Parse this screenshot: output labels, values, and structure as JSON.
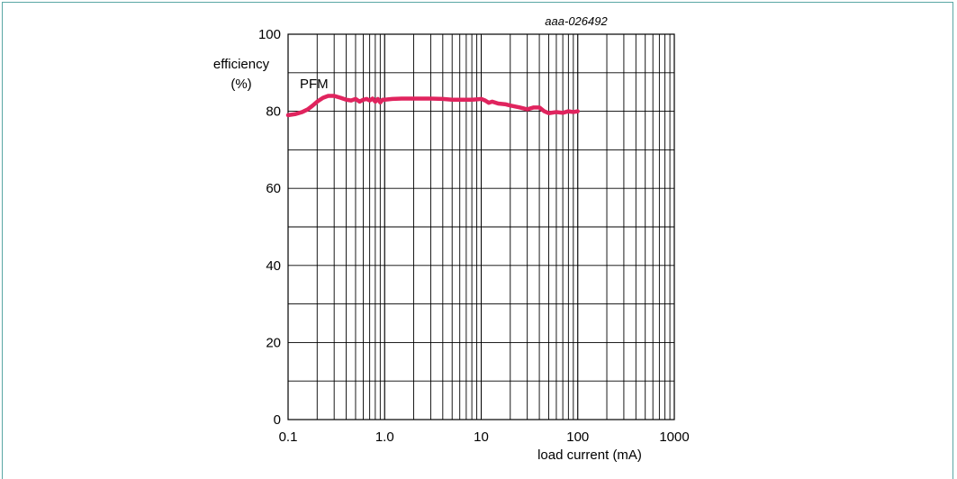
{
  "chart_data": {
    "type": "line",
    "figure_id": "aaa-026492",
    "ylabel_line1": "efficiency",
    "ylabel_line2": "(%)",
    "xlabel": "load current (mA)",
    "xscale": "log",
    "xlim": [
      0.1,
      1000
    ],
    "ylim": [
      0,
      100
    ],
    "grid": true,
    "x_tick_labels": [
      "0.1",
      "1.0",
      "10",
      "100",
      "1000"
    ],
    "x_tick_values": [
      0.1,
      1,
      10,
      100,
      1000
    ],
    "y_tick_labels": [
      "0",
      "20",
      "40",
      "60",
      "80",
      "100"
    ],
    "y_tick_values": [
      0,
      20,
      40,
      60,
      80,
      100
    ],
    "annotations": [
      {
        "text": "PFM",
        "x": 0.2,
        "y": 87
      }
    ],
    "series": [
      {
        "color": "#e0245e",
        "x": [
          0.1,
          0.12,
          0.14,
          0.16,
          0.18,
          0.2,
          0.23,
          0.26,
          0.3,
          0.35,
          0.4,
          0.45,
          0.5,
          0.55,
          0.6,
          0.65,
          0.7,
          0.75,
          0.8,
          0.85,
          0.9,
          0.95,
          1.0,
          1.2,
          1.5,
          2.0,
          3.0,
          4.0,
          5.0,
          6.0,
          7.0,
          8.0,
          9.0,
          10.0,
          11.0,
          12.0,
          13.0,
          15.0,
          18.0,
          20.0,
          25.0,
          30.0,
          35.0,
          40.0,
          45.0,
          50.0,
          60.0,
          70.0,
          80.0,
          90.0,
          100.0
        ],
        "y": [
          79.0,
          79.3,
          79.8,
          80.5,
          81.5,
          82.5,
          83.5,
          84.0,
          84.0,
          83.5,
          83.0,
          82.8,
          83.2,
          82.5,
          83.0,
          83.2,
          82.8,
          83.3,
          82.5,
          83.2,
          82.3,
          83.0,
          83.0,
          83.2,
          83.3,
          83.3,
          83.3,
          83.2,
          83.0,
          83.0,
          83.0,
          83.0,
          83.1,
          83.2,
          82.8,
          82.2,
          82.5,
          82.0,
          81.8,
          81.5,
          81.0,
          80.5,
          81.0,
          81.0,
          80.0,
          79.5,
          79.8,
          79.6,
          80.0,
          79.8,
          80.0
        ]
      }
    ]
  }
}
